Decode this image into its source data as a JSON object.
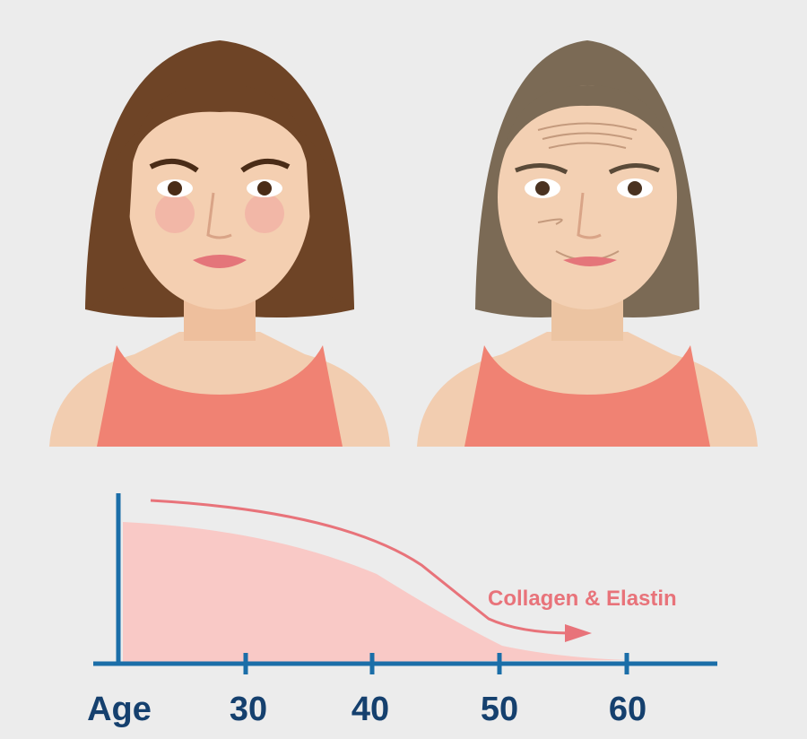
{
  "graph": {
    "axis_label": "Age",
    "ticks": [
      30,
      40,
      50,
      60
    ],
    "curve_label": "Collagen & Elastin"
  }
}
